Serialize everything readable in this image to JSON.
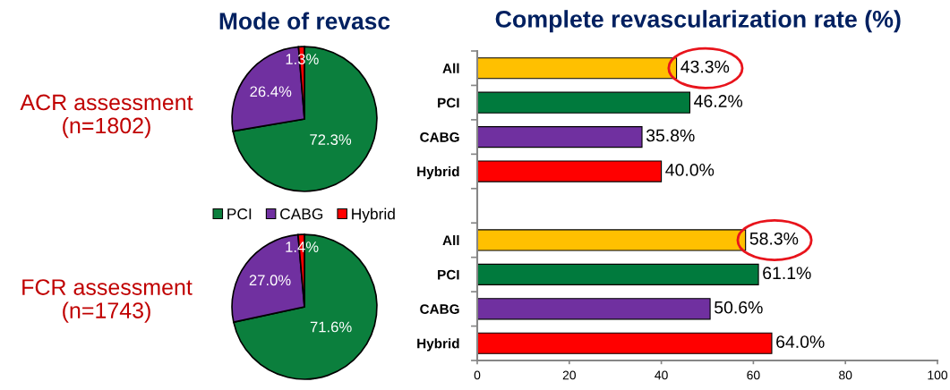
{
  "chart_data": [
    {
      "type": "pie",
      "title": "Mode of revasc",
      "categories": [
        "PCI",
        "CABG",
        "Hybrid"
      ],
      "values": [
        72.3,
        26.4,
        1.3
      ],
      "colors": [
        "#0b7f3d",
        "#7030a0",
        "#ff0000"
      ],
      "value_labels": [
        "72.3%",
        "26.4%",
        "1.3%"
      ],
      "legend": "bottom",
      "annotations": [
        "ACR assessment\n(n=1802)"
      ]
    },
    {
      "type": "pie",
      "categories": [
        null,
        null,
        null
      ],
      "values": [
        71.6,
        27.0,
        1.4
      ],
      "colors": [
        "#0b7f3d",
        "#7030a0",
        "#ff0000"
      ],
      "value_labels": [
        "71.6%",
        "27.0%",
        "1.4%"
      ],
      "annotations": [
        "FCR assessment\n(n=1743)"
      ]
    },
    {
      "type": "bar",
      "orientation": "horizontal",
      "title": "Complete revascularization rate (%)",
      "categories": [
        "All",
        "PCI",
        "CABG",
        "Hybrid",
        null,
        "All",
        "PCI",
        "CABG",
        "Hybrid"
      ],
      "values": [
        43.3,
        46.2,
        35.8,
        40.0,
        null,
        58.3,
        61.1,
        50.6,
        64.0
      ],
      "colors": [
        "#ffc000",
        "#007a3d",
        "#7030a0",
        "#ff0000",
        null,
        "#ffc000",
        "#007a3d",
        "#7030a0",
        "#ff0000"
      ],
      "value_labels": [
        "43.3%",
        "46.2%",
        "35.8%",
        "40.0%",
        null,
        "58.3%",
        "61.1%",
        "50.6%",
        "64.0%"
      ],
      "xlim": [
        0,
        100
      ],
      "xticks": [
        0,
        20,
        40,
        60,
        80,
        100
      ]
    }
  ]
}
